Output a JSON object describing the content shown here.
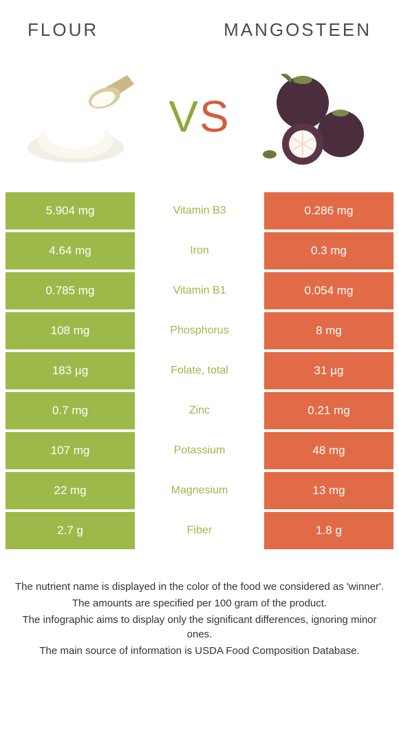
{
  "colors": {
    "left": "#9db94a",
    "right": "#e26b47",
    "vs_left": "#8ea83b",
    "vs_right": "#d35d3d",
    "mid_text": "#333333",
    "cell_text": "#ffffff",
    "background": "#ffffff"
  },
  "titles": {
    "left": "FLOUR",
    "right": "MANGOSTEEN"
  },
  "vs": {
    "v": "V",
    "s": "S"
  },
  "rows": [
    {
      "left": "5.904 mg",
      "mid": "Vitamin B3",
      "right": "0.286 mg",
      "winner": "left"
    },
    {
      "left": "4.64 mg",
      "mid": "Iron",
      "right": "0.3 mg",
      "winner": "left"
    },
    {
      "left": "0.785 mg",
      "mid": "Vitamin B1",
      "right": "0.054 mg",
      "winner": "left"
    },
    {
      "left": "108 mg",
      "mid": "Phosphorus",
      "right": "8 mg",
      "winner": "left"
    },
    {
      "left": "183 µg",
      "mid": "Folate, total",
      "right": "31 µg",
      "winner": "left"
    },
    {
      "left": "0.7 mg",
      "mid": "Zinc",
      "right": "0.21 mg",
      "winner": "left"
    },
    {
      "left": "107 mg",
      "mid": "Potassium",
      "right": "48 mg",
      "winner": "left"
    },
    {
      "left": "22 mg",
      "mid": "Magnesium",
      "right": "13 mg",
      "winner": "left"
    },
    {
      "left": "2.7 g",
      "mid": "Fiber",
      "right": "1.8 g",
      "winner": "left"
    }
  ],
  "footnotes": [
    "The nutrient name is displayed in the color of the food we considered as 'winner'.",
    "The amounts are specified per 100 gram of the product.",
    "The infographic aims to display only the significant differences, ignoring minor ones.",
    "The main source of information is USDA Food Composition Database."
  ]
}
